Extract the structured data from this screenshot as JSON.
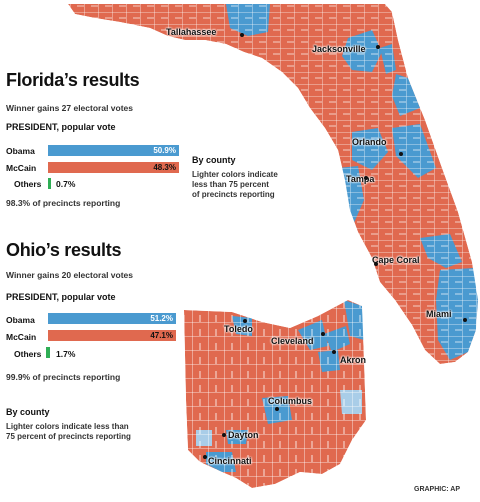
{
  "florida": {
    "title": "Florida’s results",
    "subtitle": "Winner gains 27 electoral votes",
    "race": "PRESIDENT, popular vote",
    "candidates": [
      {
        "name": "Obama",
        "pct_label": "50.9%",
        "pct": 50.9,
        "color": "#4a9ad0"
      },
      {
        "name": "McCain",
        "pct_label": "48.3%",
        "pct": 48.3,
        "color": "#e0694f"
      },
      {
        "name": "Others",
        "pct_label": "0.7%",
        "pct": 0.7,
        "color": "#2fae55"
      }
    ],
    "reporting": "98.3% of precincts reporting",
    "key_title": "By county",
    "key_text": [
      "Lighter colors indicate",
      "less than 75 percent",
      "of precincts reporting"
    ],
    "cities": [
      "Tallahassee",
      "Jacksonville",
      "Orlando",
      "Tampa",
      "Cape Coral",
      "Miami"
    ]
  },
  "ohio": {
    "title": "Ohio’s results",
    "subtitle": "Winner gains 20 electoral votes",
    "race": "PRESIDENT, popular vote",
    "candidates": [
      {
        "name": "Obama",
        "pct_label": "51.2%",
        "pct": 51.2,
        "color": "#4a9ad0"
      },
      {
        "name": "McCain",
        "pct_label": "47.1%",
        "pct": 47.1,
        "color": "#e0694f"
      },
      {
        "name": "Others",
        "pct_label": "1.7%",
        "pct": 1.7,
        "color": "#2fae55"
      }
    ],
    "reporting": "99.9% of precincts reporting",
    "key_title": "By county",
    "key_text": [
      "Lighter colors indicate less than",
      "75 percent of precincts reporting"
    ],
    "cities": [
      "Toledo",
      "Cleveland",
      "Akron",
      "Columbus",
      "Dayton",
      "Cincinnati"
    ]
  },
  "credit": "GRAPHIC: AP",
  "colors": {
    "mccain": "#e0694f",
    "obama": "#4a9ad0",
    "light_obama": "#a9cde8",
    "county_line": "#ffffff"
  }
}
